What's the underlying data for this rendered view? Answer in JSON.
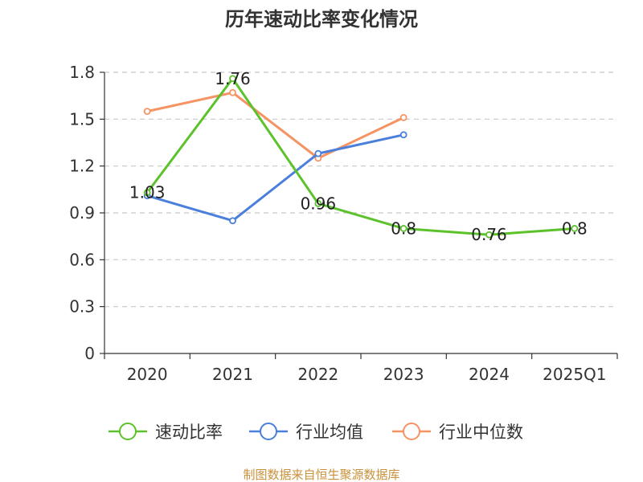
{
  "chart_data": {
    "type": "line",
    "title": "历年速动比率变化情况",
    "categories": [
      "2020",
      "2021",
      "2022",
      "2023",
      "2024",
      "2025Q1"
    ],
    "ylim": [
      0,
      1.8
    ],
    "yticks": [
      0,
      0.3,
      0.6,
      0.9,
      1.2,
      1.5,
      1.8
    ],
    "ytick_labels": [
      "0",
      "0.3",
      "0.6",
      "0.9",
      "1.2",
      "1.5",
      "1.8"
    ],
    "grid": true,
    "legend_position": "bottom",
    "series": [
      {
        "name": "速动比率",
        "color": "#5cc22c",
        "values": [
          1.03,
          1.76,
          0.96,
          0.8,
          0.76,
          0.8
        ],
        "labels": [
          "1.03",
          "1.76",
          "0.96",
          "0.8",
          "0.76",
          "0.8"
        ]
      },
      {
        "name": "行业均值",
        "color": "#4a7fdc",
        "values": [
          1.01,
          0.85,
          1.28,
          1.4,
          null,
          null
        ]
      },
      {
        "name": "行业中位数",
        "color": "#f59362",
        "values": [
          1.55,
          1.67,
          1.25,
          1.51,
          null,
          null
        ]
      }
    ],
    "source": "制图数据来自恒生聚源数据库"
  }
}
